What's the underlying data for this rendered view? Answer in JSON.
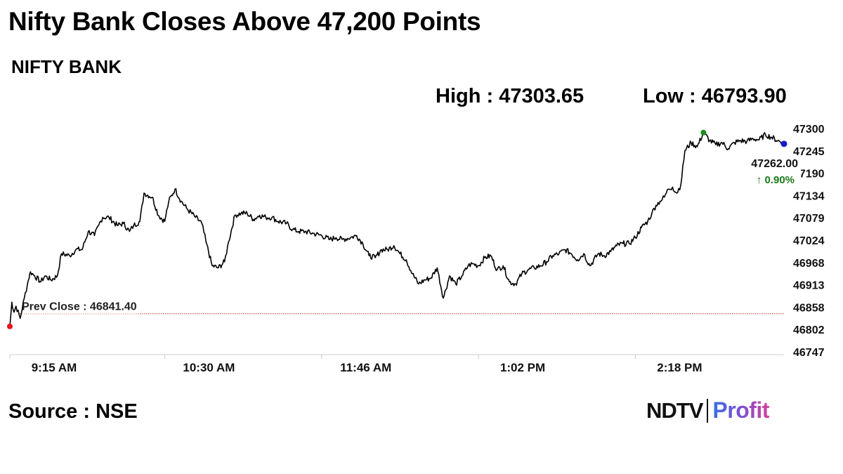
{
  "headline": "Nifty Bank Closes Above 47,200 Points",
  "subtitle": "NIFTY BANK",
  "stats": {
    "high_label": "High : 47303.65",
    "low_label": "Low : 46793.90"
  },
  "source": "Source : NSE",
  "brand": {
    "primary": "NDTV",
    "secondary": "Profit"
  },
  "colors": {
    "line": "#000000",
    "prev_close_line": "#c0392b",
    "start_marker": "#e8141c",
    "high_marker": "#1e8c1e",
    "end_marker": "#1a1ac8",
    "change_positive": "#1a7a1a"
  },
  "chart_data": {
    "type": "line",
    "title": "",
    "xlabel": "",
    "ylabel": "",
    "ylim": [
      46747,
      47300
    ],
    "y_ticks": [
      "47300",
      "47245",
      "47190",
      "47134",
      "47079",
      "47024",
      "46968",
      "46913",
      "46858",
      "46802",
      "46747"
    ],
    "x_ticks": [
      "9:15 AM",
      "10:30 AM",
      "11:46 AM",
      "1:02 PM",
      "2:18 PM"
    ],
    "x_tick_minutes": [
      555,
      630,
      706,
      782,
      858
    ],
    "x_range_minutes": [
      555,
      930
    ],
    "prev_close": {
      "label": "Prev Close : 46841.40",
      "value": 46841.4
    },
    "last": {
      "price": "47262.00",
      "change": "↑ 0.90%"
    },
    "series": [
      {
        "x": [
          555,
          556,
          557,
          558,
          560,
          562,
          564,
          565,
          567,
          570,
          572,
          575,
          578,
          580,
          584,
          587,
          590,
          593,
          596,
          598,
          600,
          603,
          607,
          610,
          613,
          615,
          618,
          620,
          624,
          627,
          630,
          632,
          635,
          638,
          641,
          645,
          648,
          650,
          653,
          656,
          659,
          661,
          664,
          667,
          670,
          673,
          676,
          679,
          682,
          685,
          689,
          692,
          695,
          698,
          702,
          706,
          710,
          713,
          716,
          720,
          723,
          726,
          729,
          732,
          735,
          738,
          741,
          744,
          747,
          750,
          753,
          756,
          759,
          762,
          765,
          768,
          771,
          774,
          777,
          779,
          782,
          785,
          788,
          791,
          794,
          797,
          800,
          803,
          806,
          809,
          812,
          815,
          818,
          821,
          824,
          827,
          830,
          833,
          836,
          840,
          843,
          846,
          849,
          852,
          855,
          858,
          861,
          864,
          866,
          868,
          870,
          872,
          874,
          876,
          878,
          880,
          882,
          885,
          888,
          891,
          894,
          897,
          900,
          903,
          906,
          909,
          912,
          915,
          918,
          921,
          924,
          927,
          930
        ],
        "y": [
          46810,
          46870,
          46845,
          46860,
          46830,
          46880,
          46925,
          46945,
          46935,
          46920,
          46935,
          46925,
          46935,
          46990,
          46985,
          47000,
          47000,
          47045,
          47035,
          47060,
          47080,
          47080,
          47060,
          47065,
          47045,
          47060,
          47070,
          47140,
          47130,
          47085,
          47070,
          47120,
          47150,
          47120,
          47100,
          47080,
          47065,
          47020,
          46960,
          46955,
          46970,
          47020,
          47085,
          47090,
          47090,
          47075,
          47085,
          47080,
          47080,
          47070,
          47065,
          47050,
          47045,
          47045,
          47040,
          47035,
          47025,
          47030,
          47025,
          47030,
          47035,
          47015,
          46985,
          46980,
          47000,
          47000,
          47010,
          46990,
          46975,
          46940,
          46915,
          46925,
          46930,
          46955,
          46880,
          46935,
          46915,
          46935,
          46960,
          46965,
          46960,
          46980,
          46985,
          46950,
          46960,
          46920,
          46915,
          46940,
          46950,
          46955,
          46960,
          46970,
          46985,
          46990,
          47000,
          46990,
          46975,
          46990,
          46960,
          46990,
          46985,
          46995,
          47010,
          47015,
          47015,
          47030,
          47055,
          47070,
          47090,
          47110,
          47120,
          47130,
          47150,
          47155,
          47140,
          47160,
          47245,
          47265,
          47255,
          47290,
          47270,
          47260,
          47265,
          47250,
          47265,
          47270,
          47268,
          47275,
          47272,
          47285,
          47278,
          47270,
          47262
        ]
      }
    ]
  }
}
